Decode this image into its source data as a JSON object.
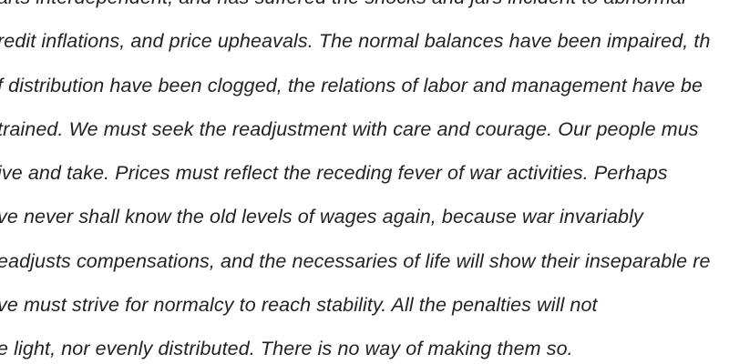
{
  "document": {
    "lines": [
      "arts interdependent, and has suffered the shocks and jars incident to abnormal",
      "redit inflations, and price upheavals. The normal balances have been impaired, th",
      "f distribution have been clogged, the relations of labor and management have be",
      "trained. We must seek the readjustment with care and courage. Our people mus",
      "ive and take. Prices must reflect the receding fever of war activities. Perhaps",
      "ve never shall know the old levels of wages again, because war invariably",
      "eadjusts compensations, and the necessaries of life will show their inseparable re",
      "ve must strive for normalcy to reach stability. All the penalties will not",
      "e light, nor evenly distributed. There is no way of making them so."
    ]
  }
}
